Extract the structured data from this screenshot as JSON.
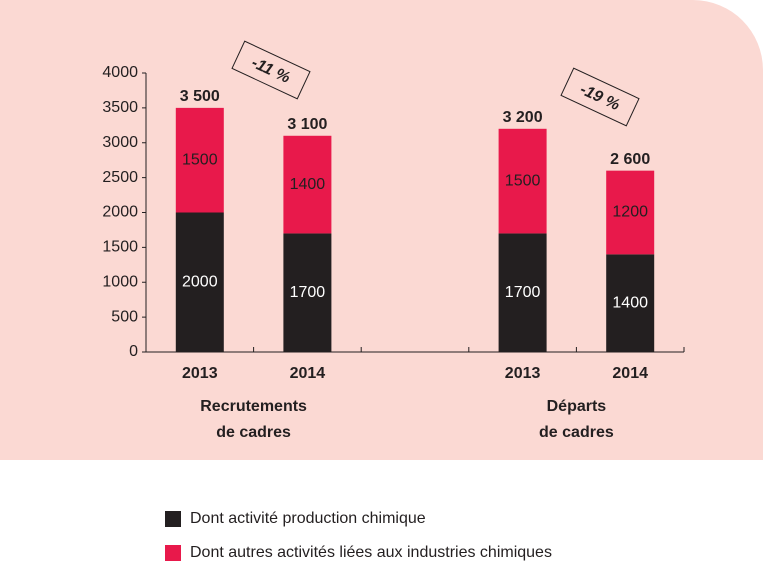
{
  "chart_data": {
    "type": "bar",
    "stacked": true,
    "categories": [
      "2013",
      "2014",
      null,
      "2013",
      "2014"
    ],
    "series": [
      {
        "name": "Dont activité production chimique",
        "color": "#231f20",
        "values": [
          2000,
          1700,
          null,
          1700,
          1400
        ]
      },
      {
        "name": "Dont autres activités liées aux industries chimiques",
        "color": "#e8194b",
        "values": [
          1500,
          1400,
          null,
          1500,
          1200
        ]
      }
    ],
    "totals": [
      3500,
      3100,
      null,
      3200,
      2600
    ],
    "total_labels": [
      "3 500",
      "3 100",
      null,
      "3 200",
      "2 600"
    ],
    "groups": [
      [
        "Recrutements",
        "de cadres"
      ],
      [
        "Départs",
        "de cadres"
      ]
    ],
    "annotations": [
      "-11 %",
      "-19 %"
    ],
    "ylim": [
      0,
      4000
    ],
    "yticks": [
      0,
      500,
      1000,
      1500,
      2000,
      2500,
      3000,
      3500,
      4000
    ]
  }
}
